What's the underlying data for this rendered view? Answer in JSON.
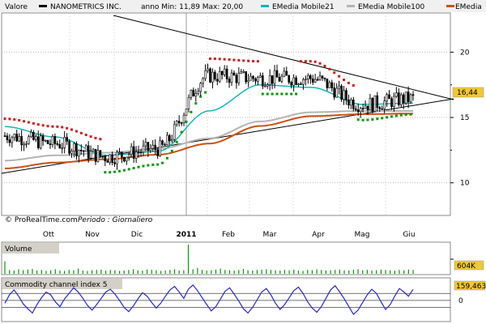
{
  "legend": {
    "valore_label": "Valore",
    "ticker_name": "NANOMETRICS INC.",
    "anno_text": "anno Min: 11,89 Max: 20,00",
    "ema21_label": "EMedia Mobile21",
    "ema100_label": "EMedia Mobile100",
    "emedia_label": "EMedia"
  },
  "colors": {
    "price": "#000000",
    "ema21": "#14b4b4",
    "ema100": "#b4b4b4",
    "ema200": "#c85014",
    "sar_up": "#0a960a",
    "sar_down": "#c81e1e",
    "trendline": "#000000",
    "cci": "#2828c8",
    "volume": "#0a960a",
    "last_price_box": "#f0c832",
    "panel_bg": "#d4d0c8"
  },
  "footer": {
    "credit": "© ProRealTime.com",
    "periodo": "Periodo : Giornaliero"
  },
  "price_panel": {
    "y_ticks": [
      "20",
      "15",
      "10"
    ],
    "last_price": "16,44"
  },
  "x_axis": {
    "labels": [
      "Ott",
      "Nov",
      "Dic",
      "2011",
      "Feb",
      "Mar",
      "Apr",
      "Mag",
      "Giu"
    ]
  },
  "volume_panel": {
    "title": "Volume",
    "last_value": "604K"
  },
  "cci_panel": {
    "title": "Commodity channel index 5",
    "last_value": "159,463",
    "zero_label": "0"
  },
  "chart_data": [
    {
      "type": "line",
      "title": "NANOMETRICS INC.",
      "x": [
        "Ott",
        "Nov",
        "Dic",
        "2011",
        "Feb",
        "Mar",
        "Apr",
        "Mag",
        "Giu"
      ],
      "ylim": [
        7.5,
        23.0
      ],
      "series": [
        {
          "name": "NANOMETRICS INC.",
          "values": [
            13.6,
            13.0,
            12.0,
            12.6,
            18.2,
            18.0,
            18.0,
            16.0,
            16.44
          ]
        },
        {
          "name": "EMedia Mobile21",
          "values": [
            14.3,
            13.5,
            12.1,
            12.4,
            15.5,
            17.5,
            17.3,
            16.0,
            16.1
          ]
        },
        {
          "name": "EMedia Mobile100",
          "values": [
            11.7,
            12.1,
            12.3,
            12.6,
            13.4,
            14.7,
            15.4,
            15.5,
            15.5
          ]
        }
      ],
      "grid": true,
      "legend": "top"
    },
    {
      "type": "bar",
      "title": "Volume",
      "last_value": "604K",
      "values": [
        38,
        12,
        10,
        14,
        11,
        13,
        15,
        10,
        12,
        9,
        11,
        14,
        10,
        9,
        12,
        11,
        16,
        10,
        9,
        11,
        12,
        13,
        10,
        12,
        11,
        9,
        10,
        12,
        14,
        11,
        10,
        13,
        12,
        11,
        9,
        10,
        12,
        14,
        10,
        11,
        90,
        14,
        18,
        12,
        10,
        11,
        13,
        16,
        12,
        11,
        10,
        12,
        15,
        11,
        10,
        12,
        13,
        14,
        12,
        11,
        10,
        12,
        11,
        13,
        10,
        9,
        12,
        11,
        14,
        12,
        10,
        11,
        12,
        13,
        11,
        10,
        12,
        14,
        11,
        12,
        10,
        11,
        13,
        12,
        11,
        10,
        12,
        11,
        13,
        12
      ]
    },
    {
      "type": "line",
      "title": "Commodity channel index 5",
      "last_value": "159,463",
      "ylim": [
        -280,
        300
      ],
      "series": [
        {
          "name": "Commodity channel index 5",
          "values": [
            -40,
            80,
            150,
            60,
            -50,
            -120,
            -180,
            -60,
            40,
            120,
            80,
            -20,
            -90,
            20,
            100,
            180,
            120,
            30,
            -70,
            -140,
            -60,
            30,
            120,
            160,
            90,
            0,
            -100,
            -160,
            -80,
            20,
            110,
            60,
            -30,
            -110,
            -40,
            60,
            150,
            200,
            120,
            30,
            160,
            220,
            140,
            40,
            -60,
            -150,
            -90,
            20,
            130,
            180,
            90,
            -10,
            -120,
            -180,
            -100,
            10,
            120,
            170,
            80,
            -40,
            -130,
            -60,
            40,
            140,
            190,
            100,
            -20,
            -110,
            -170,
            -90,
            30,
            150,
            210,
            120,
            20,
            -90,
            -200,
            -140,
            -30,
            80,
            160,
            100,
            -20,
            -130,
            -60,
            60,
            170,
            120,
            60,
            159
          ]
        }
      ]
    }
  ]
}
